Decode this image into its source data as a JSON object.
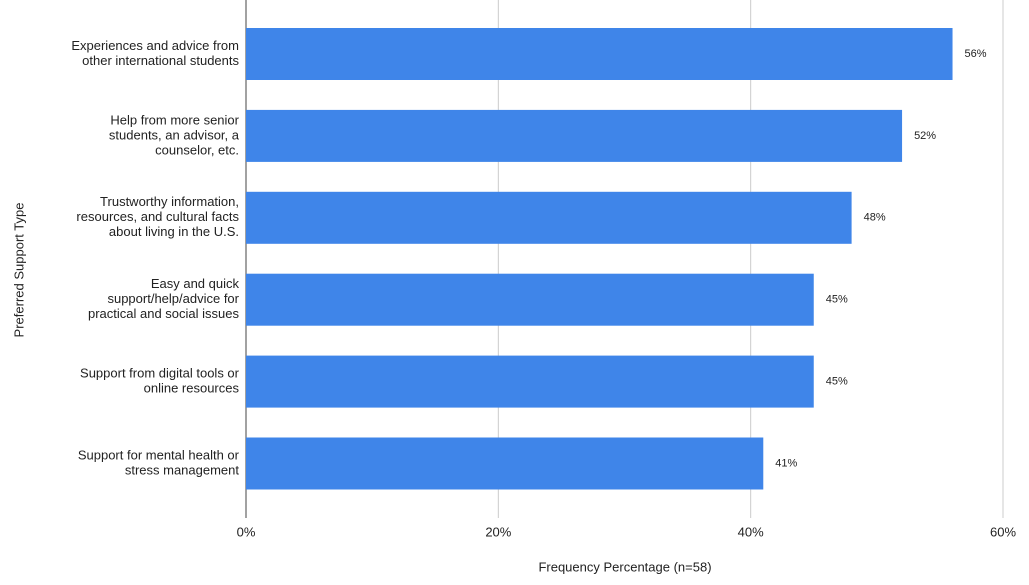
{
  "chart_data": {
    "type": "hbar",
    "categories": [
      [
        "Experiences and advice from",
        "other international students"
      ],
      [
        "Help from more senior",
        "students, an advisor, a",
        "counselor, etc."
      ],
      [
        "Trustworthy information,",
        "resources, and cultural facts",
        "about living in the U.S."
      ],
      [
        "Easy and quick",
        "support/help/advice for",
        "practical and social issues"
      ],
      [
        "Support from digital tools or",
        "online resources"
      ],
      [
        "Support for mental health or",
        "stress management"
      ]
    ],
    "values": [
      56,
      52,
      48,
      45,
      45,
      41
    ],
    "value_labels": [
      "56%",
      "52%",
      "48%",
      "45%",
      "45%",
      "41%"
    ],
    "color": "#3f85e9",
    "xlim": [
      0,
      60
    ],
    "xticks": [
      {
        "value": 0,
        "label": "0%"
      },
      {
        "value": 20,
        "label": "20%"
      },
      {
        "value": 40,
        "label": "40%"
      },
      {
        "value": 60,
        "label": "60%"
      }
    ],
    "xlabel": "Frequency Percentage (n=58)",
    "ylabel": "Preferred Support Type",
    "grid": true
  }
}
